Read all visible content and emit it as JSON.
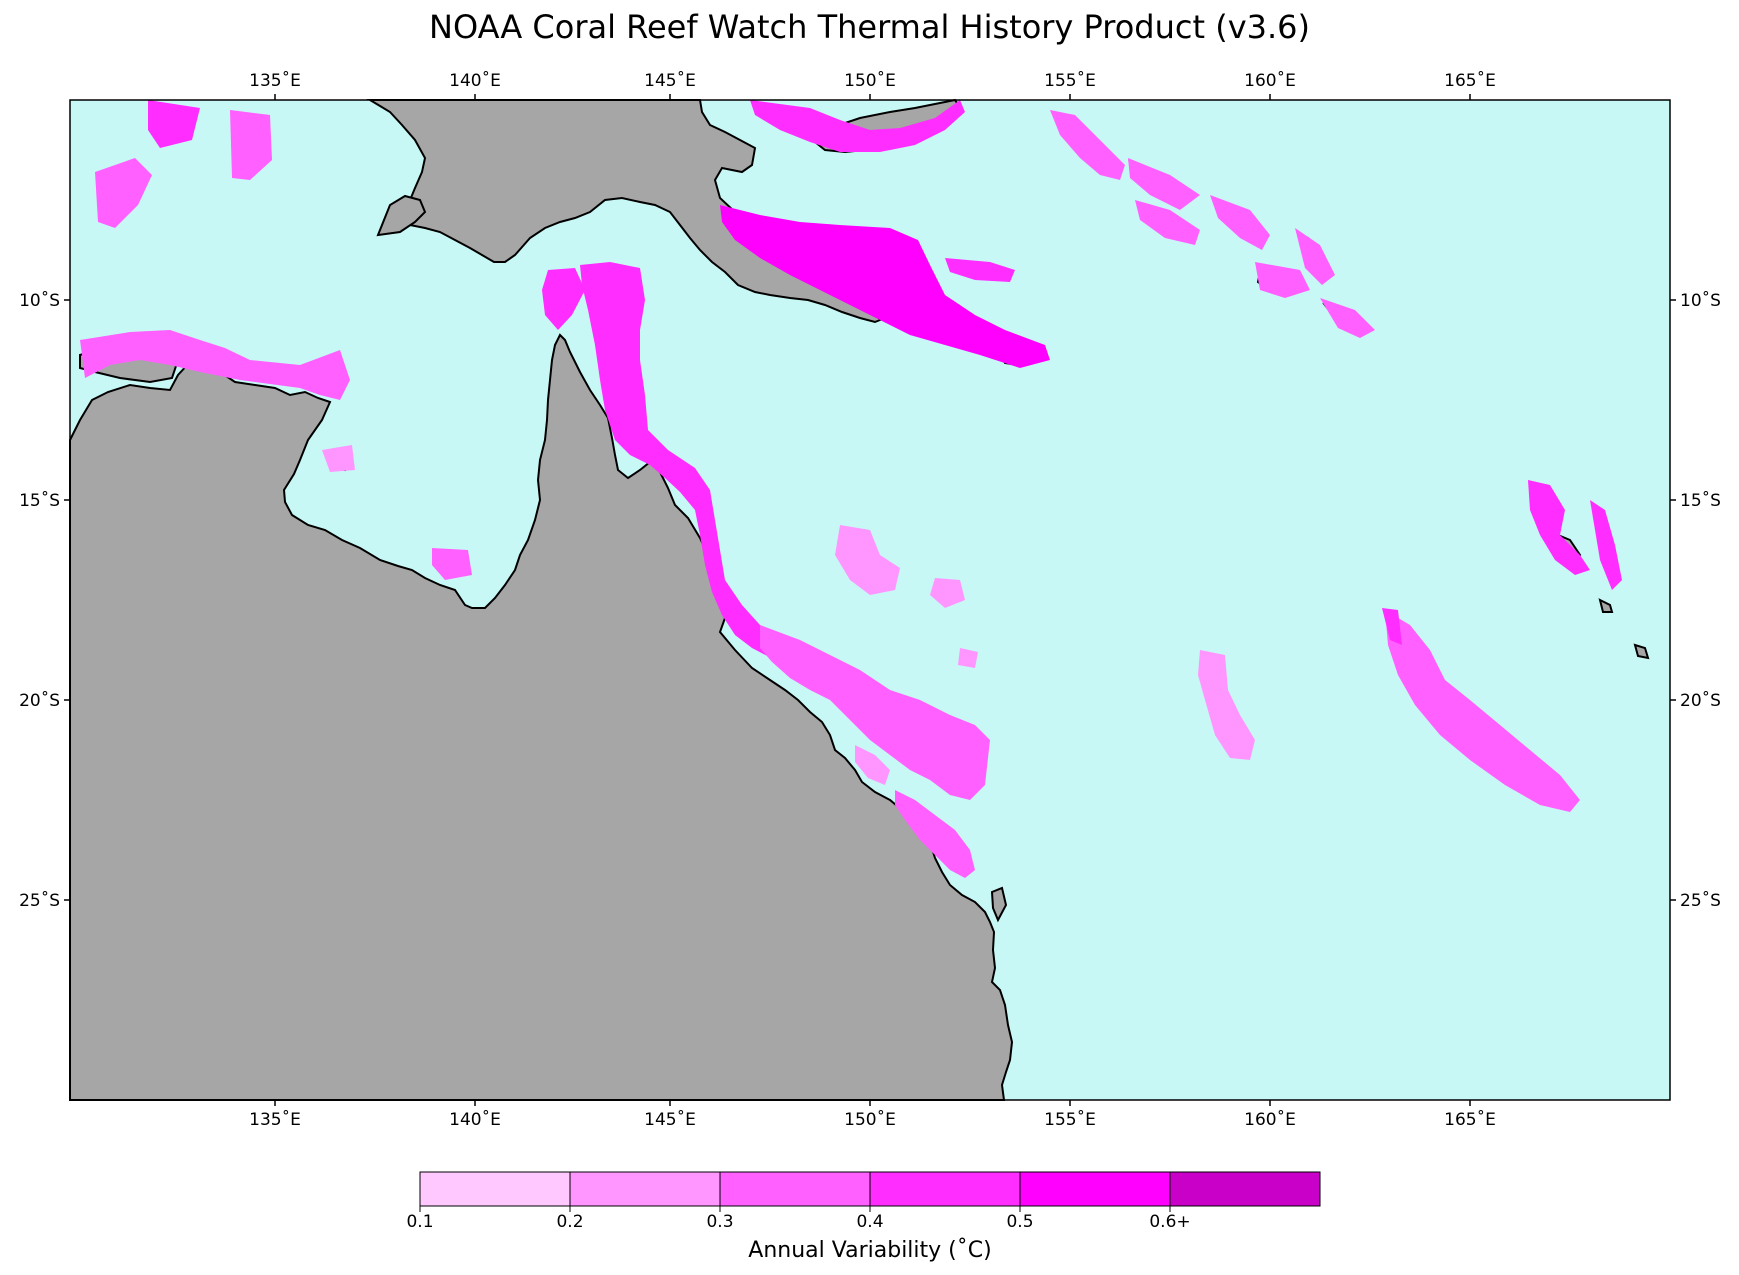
{
  "title": "NOAA Coral Reef Watch Thermal History Product (v3.6)",
  "map": {
    "region": "Great Barrier Reef / Coral Sea",
    "lon_range": [
      130,
      170
    ],
    "lat_range": [
      -30,
      -5
    ],
    "lon_ticks": [
      "135˚E",
      "140˚E",
      "145˚E",
      "150˚E",
      "155˚E",
      "160˚E",
      "165˚E"
    ],
    "lat_ticks": [
      "10˚S",
      "15˚S",
      "20˚S",
      "25˚S"
    ],
    "colors": {
      "ocean": "#c8f8f6",
      "land": "#a6a6a6",
      "coast": "#000000"
    }
  },
  "legend": {
    "label": "Annual Variability (˚C)",
    "tick_labels": [
      "0.1",
      "0.2",
      "0.3",
      "0.4",
      "0.5",
      "0.6+"
    ],
    "bins": [
      {
        "range": "0.1-0.2",
        "color": "#ffc8ff"
      },
      {
        "range": "0.2-0.3",
        "color": "#ff96ff"
      },
      {
        "range": "0.3-0.4",
        "color": "#ff60ff"
      },
      {
        "range": "0.4-0.5",
        "color": "#ff2dff"
      },
      {
        "range": "0.5-0.6",
        "color": "#ff00ff"
      },
      {
        "range": "0.6+",
        "color": "#c800c8"
      }
    ]
  }
}
